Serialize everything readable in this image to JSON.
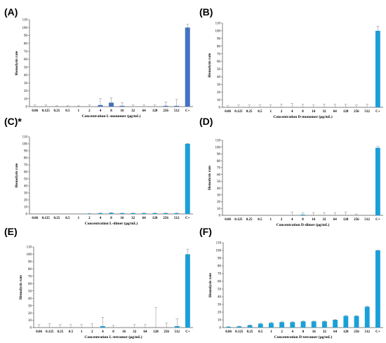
{
  "chart_data": [
    {
      "panel": "(A)",
      "type": "bar",
      "categories": [
        "0.06",
        "0.125",
        "0.25",
        "0.5",
        "1",
        "2",
        "4",
        "8",
        "16",
        "32",
        "64",
        "128",
        "256",
        "512",
        "C+"
      ],
      "values": [
        0,
        0,
        0,
        0,
        0,
        0,
        2,
        5,
        1,
        0,
        0,
        0,
        1,
        1,
        100
      ],
      "errors": [
        2,
        2,
        1,
        1,
        1,
        2,
        8,
        6,
        4,
        2,
        2,
        2,
        5,
        8,
        4
      ],
      "xlabel": "Concentration L-monomer (µg/mL)",
      "ylabel": "Hemolysis rate",
      "ylim": [
        0,
        110
      ],
      "yticks": [
        0,
        10,
        20,
        30,
        40,
        50,
        60,
        70,
        80,
        90,
        100,
        110
      ],
      "color": "#4472c4"
    },
    {
      "panel": "(B)",
      "type": "bar",
      "categories": [
        "0.06",
        "0.125",
        "0.25",
        "0.5",
        "1",
        "2",
        "4",
        "8",
        "16",
        "32",
        "64",
        "128",
        "256",
        "512",
        "C+"
      ],
      "values": [
        0,
        0,
        0,
        0,
        0,
        0,
        0,
        0,
        0,
        0,
        0,
        0,
        0,
        0,
        100
      ],
      "errors": [
        2,
        3,
        3,
        3,
        3,
        4,
        5,
        4,
        3,
        4,
        4,
        4,
        3,
        4,
        6
      ],
      "xlabel": "Concentration D-monomer (µg/mL)",
      "ylabel": "Hemolysis rate",
      "ylim": [
        0,
        110
      ],
      "yticks": [
        0,
        10,
        20,
        30,
        40,
        50,
        60,
        70,
        80,
        90,
        100,
        110
      ],
      "color": "#1aa0d8"
    },
    {
      "panel": "(C)*",
      "type": "bar",
      "categories": [
        "0.06",
        "0.125",
        "0.25",
        "0.5",
        "1",
        "2",
        "4",
        "8",
        "16",
        "32",
        "64",
        "128",
        "256",
        "512",
        "C+"
      ],
      "values": [
        0,
        0,
        0,
        0,
        0,
        0.5,
        1,
        1.5,
        1,
        1,
        1,
        1,
        1,
        1,
        100
      ],
      "errors": [
        0,
        0,
        0,
        0,
        0,
        0.3,
        0.5,
        0.5,
        0.5,
        0.5,
        0.5,
        0.5,
        0.5,
        0.5,
        0.5
      ],
      "xlabel": "Concentration L-dimer (µg/mL)",
      "ylabel": "Hemolysis rate",
      "ylim": [
        0,
        110
      ],
      "yticks": [
        0,
        10,
        20,
        30,
        40,
        50,
        60,
        70,
        80,
        90,
        100,
        110
      ],
      "color": "#1aa0d8"
    },
    {
      "panel": "(D)",
      "type": "bar",
      "categories": [
        "0.06",
        "0.125",
        "0.25",
        "0.5",
        "1",
        "2",
        "4",
        "8",
        "16",
        "32",
        "64",
        "128",
        "256",
        "512",
        "C+"
      ],
      "values": [
        0,
        0,
        0,
        0,
        0,
        0,
        0,
        1,
        0,
        0,
        0,
        0,
        0,
        0,
        99
      ],
      "errors": [
        0,
        0,
        0,
        0,
        0,
        0,
        5,
        3,
        4,
        4,
        4,
        5,
        2,
        0,
        2
      ],
      "xlabel": "Concentration D-dimer (µg/mL)",
      "ylabel": "Hemolysis rate",
      "ylim": [
        0,
        110
      ],
      "yticks": [
        0,
        10,
        20,
        30,
        40,
        50,
        60,
        70,
        80,
        90,
        100,
        110
      ],
      "color": "#1aa0d8"
    },
    {
      "panel": "(E)",
      "type": "bar",
      "categories": [
        "0.06",
        "0.125",
        "0.25",
        "0.5",
        "1",
        "2",
        "4",
        "8",
        "16",
        "32",
        "64",
        "128",
        "256",
        "512",
        "C+"
      ],
      "values": [
        0,
        0,
        0,
        0,
        0,
        0,
        2,
        0,
        0,
        0,
        0,
        0,
        0,
        2,
        100
      ],
      "errors": [
        4,
        5,
        4,
        4,
        4,
        5,
        12,
        3,
        0,
        4,
        4,
        27,
        6,
        10,
        7
      ],
      "xlabel": "Concentration L-tetramer (µg/mL)",
      "ylabel": "Hemolysis rate",
      "ylim": [
        0,
        110
      ],
      "yticks": [
        0,
        10,
        20,
        30,
        40,
        50,
        60,
        70,
        80,
        90,
        100,
        110
      ],
      "color": "#1aa0d8"
    },
    {
      "panel": "(F)",
      "type": "bar",
      "categories": [
        "0.06",
        "0.125",
        "0.25",
        "0.5",
        "1",
        "2",
        "4",
        "8",
        "16",
        "32",
        "64",
        "128",
        "256",
        "512",
        "C+"
      ],
      "values": [
        1,
        1.5,
        3,
        5,
        6,
        7,
        7,
        8,
        8,
        8,
        10,
        15,
        15,
        27,
        100
      ],
      "errors": [
        0.3,
        0.3,
        0.5,
        0.6,
        0.6,
        0.5,
        0.6,
        0.6,
        0.5,
        0.5,
        0.5,
        0.6,
        0.5,
        0.6,
        0.4
      ],
      "xlabel": "Concentration D-tetramer (µg/mL)",
      "ylabel": "Hemolysis rate",
      "ylim": [
        0,
        110
      ],
      "yticks": [
        0,
        10,
        20,
        30,
        40,
        50,
        60,
        70,
        80,
        90,
        100,
        110
      ],
      "color": "#1aa0d8"
    }
  ]
}
